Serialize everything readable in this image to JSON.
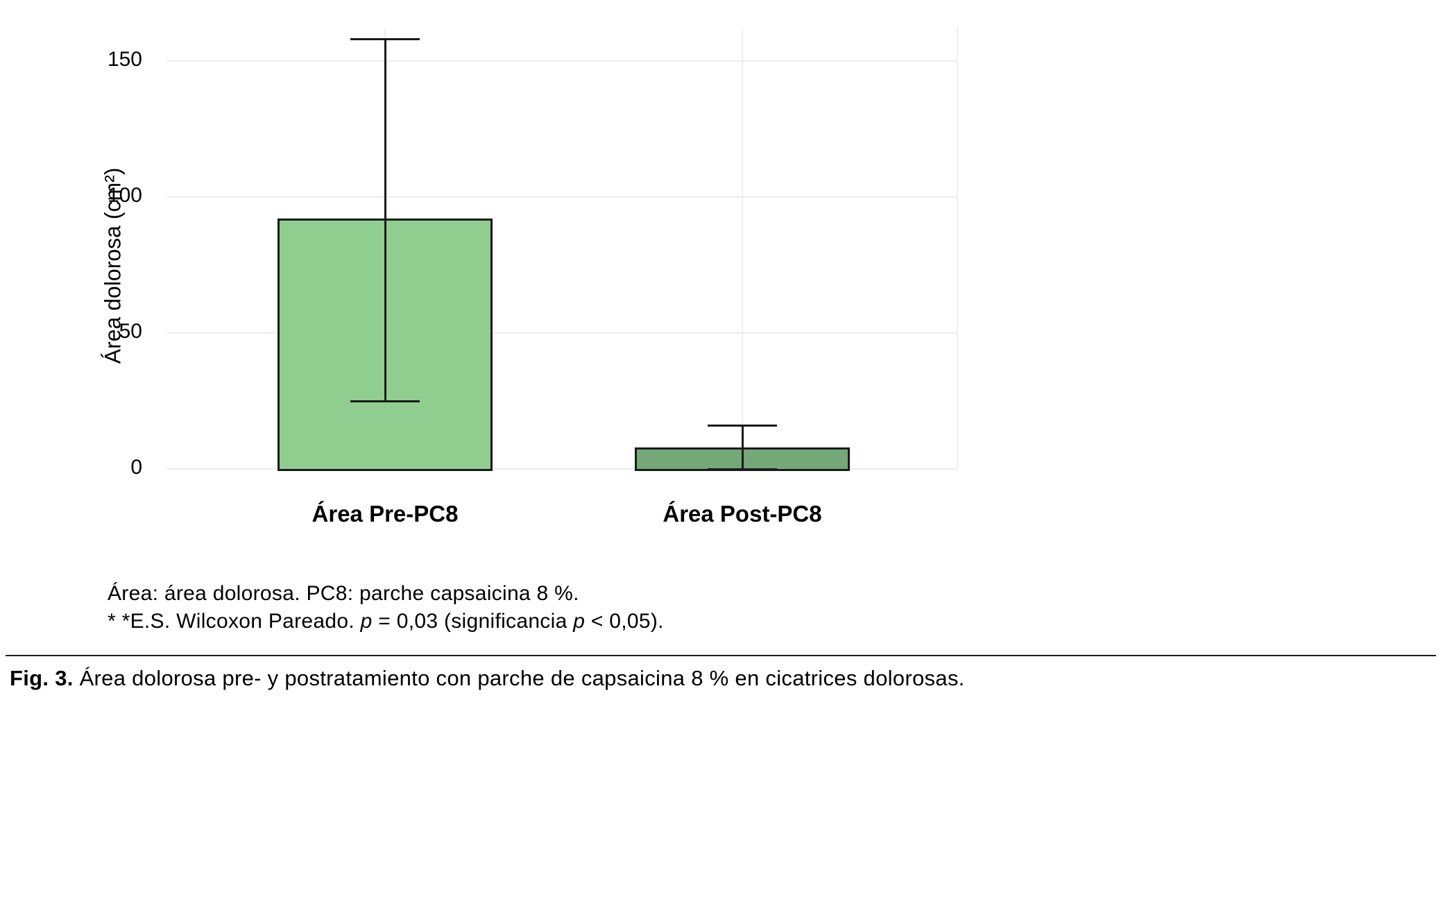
{
  "chart_data": {
    "type": "bar",
    "categories": [
      "Área Pre-PC8",
      "Área Post-PC8"
    ],
    "values": [
      92,
      8
    ],
    "error_low": [
      25,
      0
    ],
    "error_high": [
      158,
      16
    ],
    "bar_colors": [
      "#8fce8f",
      "#74a878"
    ],
    "bar_edge_color": "#1a1a1a",
    "error_color": "#1a1a1a",
    "title": "",
    "xlabel": "",
    "ylabel": "Área dolorosa (cm²)",
    "yticks": [
      0,
      50,
      100,
      150
    ],
    "ylim": [
      0,
      162
    ],
    "grid": "light horizontal gridlines at y ticks, faint vertical gridlines at category centers and right edge",
    "gridline_color": "#ececec",
    "legend": "none"
  },
  "footnotes": {
    "line1": "Área: área dolorosa. PC8: parche capsaicina 8 %.",
    "line2": {
      "prefix": "* *E.S. Wilcoxon Pareado. ",
      "p1": "p",
      "mid": " = 0,03 (significancia ",
      "p2": "p",
      "suffix": " < 0,05)."
    }
  },
  "caption": {
    "label": "Fig. 3.",
    "text": " Área dolorosa pre- y postratamiento con parche de capsaicina 8 % en cicatrices dolorosas."
  }
}
